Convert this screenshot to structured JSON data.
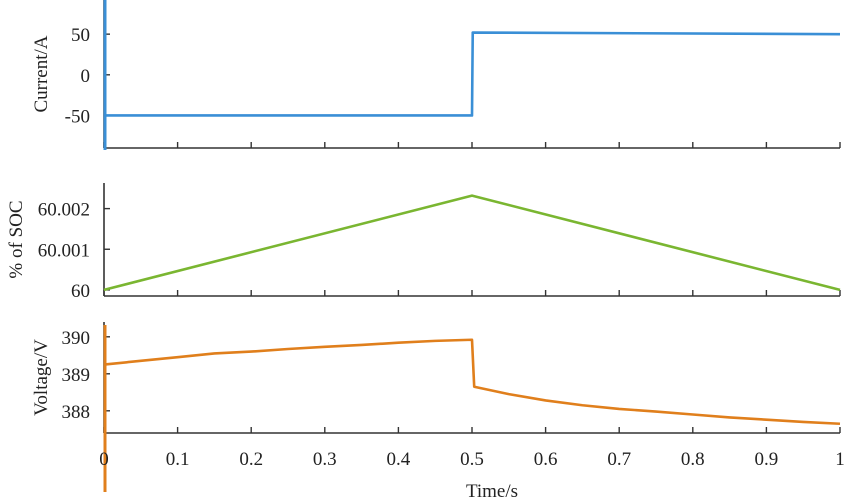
{
  "chart_data": [
    {
      "type": "line",
      "ylabel": "Current/A",
      "xlabel": "",
      "xlim": [
        0,
        1
      ],
      "ylim": [
        -90,
        92
      ],
      "yticks": [
        50,
        0,
        -50
      ],
      "ytick_labels": [
        "50",
        "0",
        "-50"
      ],
      "series": [
        {
          "color": "#3a8fd6",
          "x": [
            0,
            0,
            0.5,
            0.501,
            1.0
          ],
          "y": [
            -50,
            -50,
            -50,
            52,
            50
          ]
        }
      ]
    },
    {
      "type": "line",
      "ylabel": "% of SOC",
      "xlabel": "",
      "xlim": [
        0,
        1
      ],
      "ylim": [
        59.99985,
        60.00263
      ],
      "yticks": [
        60.002,
        60.001,
        60
      ],
      "ytick_labels": [
        "60.002",
        "60.001",
        "60"
      ],
      "series": [
        {
          "color": "#7ab631",
          "x": [
            0,
            0.5,
            1.0
          ],
          "y": [
            60.0,
            60.00232,
            60.0
          ]
        }
      ]
    },
    {
      "type": "line",
      "ylabel": "Voltage/V",
      "xlabel": "Time/s",
      "xlim": [
        0,
        1
      ],
      "ylim": [
        387.4,
        390.4
      ],
      "yticks": [
        390,
        389,
        388
      ],
      "ytick_labels": [
        "390",
        "389",
        "388"
      ],
      "xticks": [
        0,
        0.1,
        0.2,
        0.3,
        0.4,
        0.5,
        0.6,
        0.7,
        0.8,
        0.9,
        1
      ],
      "xtick_labels": [
        "0",
        "0.1",
        "0.2",
        "0.3",
        "0.4",
        "0.5",
        "0.6",
        "0.7",
        "0.8",
        "0.9",
        "1"
      ],
      "series": [
        {
          "color": "#e07f1c",
          "x": [
            0.0,
            0.05,
            0.1,
            0.15,
            0.2,
            0.25,
            0.3,
            0.35,
            0.4,
            0.45,
            0.5,
            0.503,
            0.55,
            0.6,
            0.65,
            0.7,
            0.75,
            0.8,
            0.85,
            0.9,
            0.95,
            1.0
          ],
          "y": [
            389.25,
            389.35,
            389.45,
            389.55,
            389.6,
            389.67,
            389.73,
            389.78,
            389.84,
            389.89,
            389.92,
            388.65,
            388.45,
            388.28,
            388.15,
            388.05,
            387.98,
            387.9,
            387.82,
            387.76,
            387.7,
            387.65
          ]
        }
      ]
    }
  ]
}
